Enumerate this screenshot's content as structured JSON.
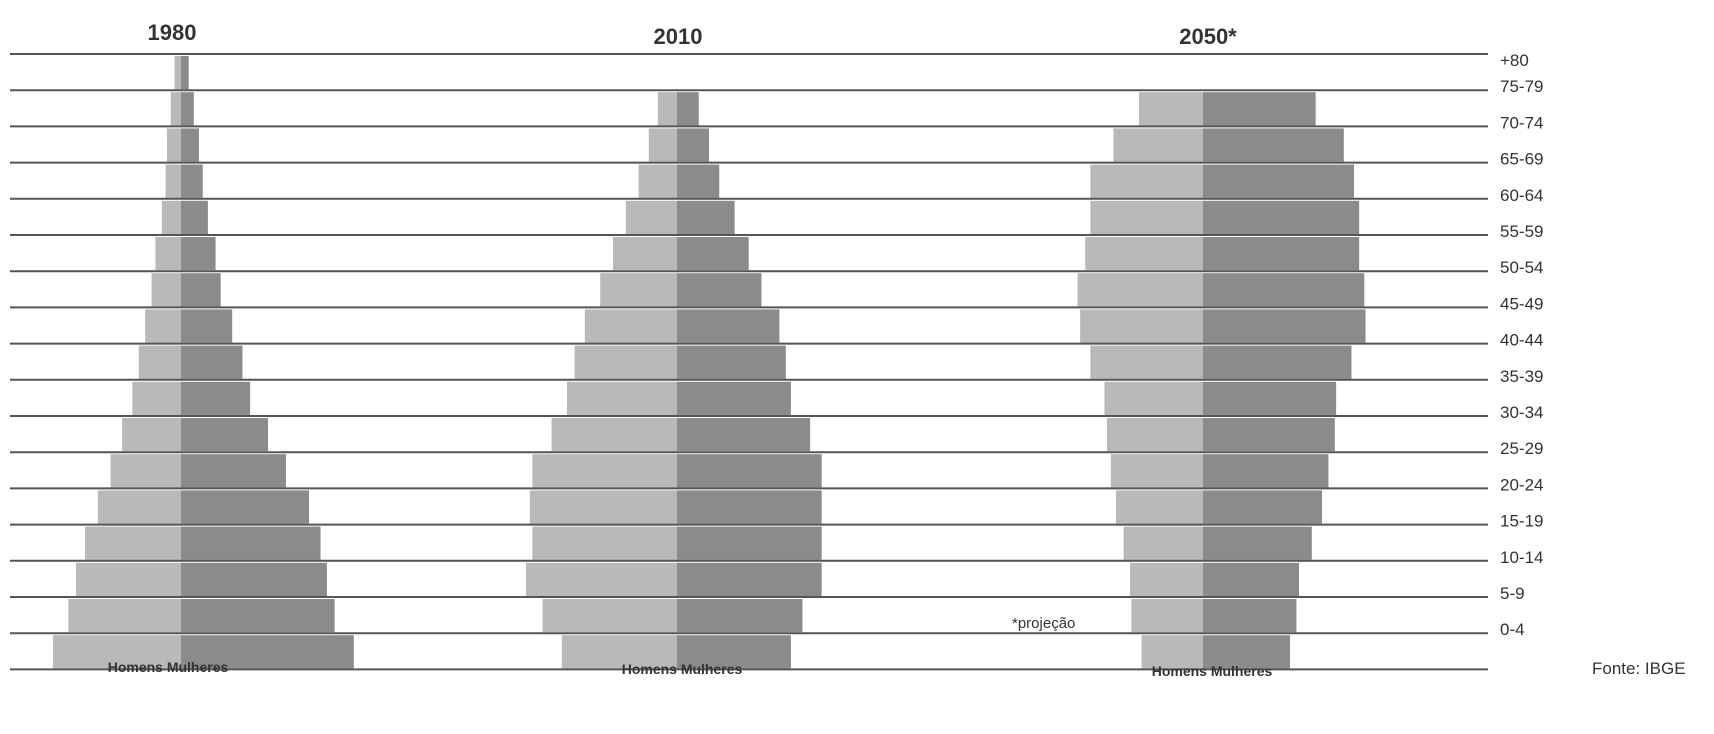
{
  "chart_data": {
    "type": "bar",
    "subtype": "population-pyramids",
    "age_groups": [
      "+80",
      "75-79",
      "70-74",
      "65-69",
      "60-64",
      "55-59",
      "50-54",
      "45-49",
      "40-44",
      "35-39",
      "30-34",
      "25-29",
      "20-24",
      "15-19",
      "10-14",
      "5-9",
      "0-4"
    ],
    "colors": {
      "Homens": "#b9b9b9",
      "Mulheres": "#8b8b8b",
      "rule": "#555555",
      "text": "#333333"
    },
    "pyramids": [
      {
        "title": "1980",
        "sex_labels": "Homens Mulheres",
        "series": [
          {
            "name": "Homens",
            "values": [
              0.5,
              0.8,
              1.1,
              1.2,
              1.5,
              2.0,
              2.3,
              2.8,
              3.3,
              3.8,
              4.6,
              5.5,
              6.5,
              7.5,
              8.2,
              8.8,
              10.0
            ]
          },
          {
            "name": "Mulheres",
            "values": [
              0.6,
              1.0,
              1.4,
              1.7,
              2.1,
              2.7,
              3.1,
              4.0,
              4.8,
              5.4,
              6.8,
              8.2,
              10.0,
              10.9,
              11.4,
              12.0,
              13.5
            ]
          }
        ]
      },
      {
        "title": "2010",
        "sex_labels": "Homens Mulheres",
        "series": [
          {
            "name": "Homens",
            "values": [
              0.0,
              1.5,
              2.2,
              3.0,
              4.0,
              5.0,
              6.0,
              7.2,
              8.0,
              8.6,
              9.8,
              11.3,
              11.5,
              11.3,
              11.8,
              10.5,
              9.0
            ]
          },
          {
            "name": "Mulheres",
            "values": [
              0.0,
              1.7,
              2.5,
              3.3,
              4.5,
              5.6,
              6.6,
              8.0,
              8.5,
              8.9,
              10.4,
              11.3,
              11.3,
              11.3,
              11.3,
              9.8,
              8.9
            ]
          }
        ]
      },
      {
        "title": "2050*",
        "sex_labels": "Homens Mulheres",
        "note": "*projeção",
        "series": [
          {
            "name": "Homens",
            "values": [
              0.0,
              5.0,
              7.0,
              8.8,
              8.8,
              9.2,
              9.8,
              9.6,
              8.8,
              7.7,
              7.5,
              7.2,
              6.8,
              6.2,
              5.7,
              5.6,
              4.8
            ]
          },
          {
            "name": "Mulheres",
            "values": [
              0.0,
              8.8,
              11.0,
              11.8,
              12.2,
              12.2,
              12.6,
              12.7,
              11.6,
              10.4,
              10.3,
              9.8,
              9.3,
              8.5,
              7.5,
              7.3,
              6.8
            ]
          }
        ]
      }
    ],
    "source": "Fonte: IBGE",
    "grid": false
  }
}
